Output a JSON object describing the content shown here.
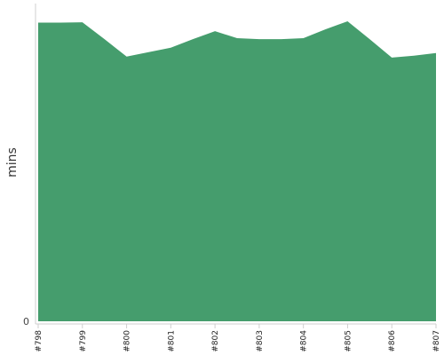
{
  "chart_data": {
    "type": "area",
    "title": "",
    "xlabel": "",
    "ylabel": "mins",
    "categories": [
      "#798",
      "#799",
      "#800",
      "#801",
      "#802",
      "#803",
      "#804",
      "#805",
      "#806",
      "#807"
    ],
    "series": [
      {
        "color": "#459d6d",
        "x": [
          0,
          0.5,
          1,
          1.5,
          2,
          2.5,
          3,
          3.5,
          4,
          4.5,
          5,
          5.5,
          6,
          6.5,
          7,
          7.5,
          8,
          8.5,
          9
        ],
        "values": [
          94,
          94,
          94.1,
          88.8,
          83.3,
          84.7,
          86.1,
          88.8,
          91.3,
          89.1,
          88.8,
          88.8,
          89.1,
          91.9,
          94.4,
          88.8,
          83,
          83.6,
          84.4
        ]
      }
    ],
    "y_ticks": [
      "0"
    ],
    "ylim": [
      0,
      100
    ],
    "grid": false,
    "legend": "none"
  }
}
